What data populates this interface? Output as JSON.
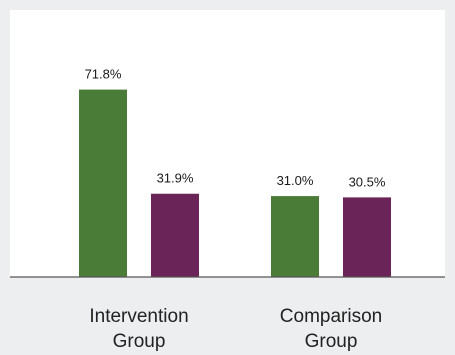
{
  "chart_data": {
    "type": "bar",
    "categories": [
      "Intervention Group",
      "Comparison Group"
    ],
    "category_lines": [
      [
        "Intervention",
        "Group"
      ],
      [
        "Comparison",
        "Group"
      ]
    ],
    "series": [
      {
        "color": "#4a7c38",
        "values": [
          71.8,
          31.0
        ]
      },
      {
        "color": "#6b2457",
        "values": [
          31.9,
          30.5
        ]
      }
    ],
    "value_labels": [
      [
        "71.8%",
        "31.0%"
      ],
      [
        "31.9%",
        "30.5%"
      ]
    ],
    "ylim": [
      0,
      100
    ],
    "grid": false,
    "legend": "none"
  },
  "colors": {
    "background": "#eceef0",
    "plot_background": "#ffffff",
    "axis": "#555555"
  }
}
